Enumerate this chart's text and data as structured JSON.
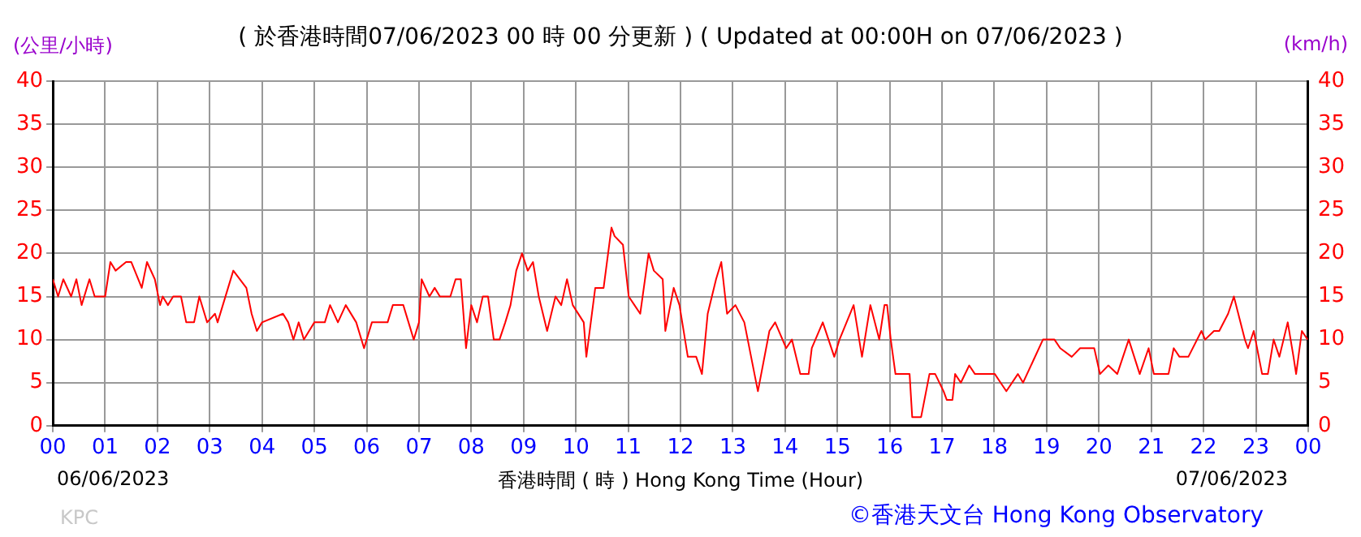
{
  "chart_data": {
    "type": "line",
    "title": "( 於香港時間07/06/2023 00 時 00 分更新 ) ( Updated at 00:00H on 07/06/2023 )",
    "xlabel": "香港時間 ( 時 )  Hong Kong Time (Hour)",
    "ylabel": "(公里/小時)",
    "y2label": "(km/h)",
    "annotations": [
      "06/06/2023",
      "07/06/2023",
      "KPC",
      "©香港天文台 Hong Kong Observatory"
    ],
    "xlim": [
      0,
      24
    ],
    "ylim": [
      0,
      40
    ],
    "y2lim": [
      0,
      40
    ],
    "xticks": [
      {
        "value": 0,
        "label": "00"
      },
      {
        "value": 1,
        "label": "01"
      },
      {
        "value": 2,
        "label": "02"
      },
      {
        "value": 3,
        "label": "03"
      },
      {
        "value": 4,
        "label": "04"
      },
      {
        "value": 5,
        "label": "05"
      },
      {
        "value": 6,
        "label": "06"
      },
      {
        "value": 7,
        "label": "07"
      },
      {
        "value": 8,
        "label": "08"
      },
      {
        "value": 9,
        "label": "09"
      },
      {
        "value": 10,
        "label": "10"
      },
      {
        "value": 11,
        "label": "11"
      },
      {
        "value": 12,
        "label": "12"
      },
      {
        "value": 13,
        "label": "13"
      },
      {
        "value": 14,
        "label": "14"
      },
      {
        "value": 15,
        "label": "15"
      },
      {
        "value": 16,
        "label": "16"
      },
      {
        "value": 17,
        "label": "17"
      },
      {
        "value": 18,
        "label": "18"
      },
      {
        "value": 19,
        "label": "19"
      },
      {
        "value": 20,
        "label": "20"
      },
      {
        "value": 21,
        "label": "21"
      },
      {
        "value": 22,
        "label": "22"
      },
      {
        "value": 23,
        "label": "23"
      },
      {
        "value": 24,
        "label": "00"
      }
    ],
    "yticks": [
      0,
      5,
      10,
      15,
      20,
      25,
      30,
      35,
      40
    ],
    "y2ticks": [
      0,
      5,
      10,
      15,
      20,
      25,
      30,
      35,
      40
    ],
    "grid": true,
    "legend": false,
    "marker": "none",
    "line_style": "solid",
    "series": [
      {
        "color": "#ff0000",
        "x": [
          0,
          0.1,
          0.2,
          0.35,
          0.45,
          0.55,
          0.65,
          0.7,
          0.8,
          1.0,
          1.05,
          1.1,
          1.2,
          1.4,
          1.5,
          1.7,
          1.8,
          1.95,
          2.05,
          2.1,
          2.2,
          2.3,
          2.45,
          2.55,
          2.7,
          2.8,
          2.95,
          3.1,
          3.15,
          3.35,
          3.45,
          3.7,
          3.8,
          3.9,
          4.0,
          4.4,
          4.5,
          4.6,
          4.7,
          4.8,
          5.0,
          5.2,
          5.3,
          5.45,
          5.6,
          5.8,
          5.95,
          6.1,
          6.4,
          6.5,
          6.7,
          6.8,
          6.9,
          7.0,
          7.05,
          7.2,
          7.3,
          7.4,
          7.6,
          7.7,
          7.8,
          7.9,
          8.0,
          8.11,
          8.22,
          8.32,
          8.43,
          8.54,
          8.65,
          8.75,
          8.86,
          8.97,
          9.08,
          9.18,
          9.29,
          9.45,
          9.61,
          9.72,
          9.83,
          9.94,
          10.15,
          10.2,
          10.37,
          10.53,
          10.68,
          10.74,
          10.9,
          11.01,
          11.12,
          11.23,
          11.39,
          11.49,
          11.66,
          11.71,
          11.87,
          11.98,
          12.14,
          12.3,
          12.41,
          12.52,
          12.68,
          12.78,
          12.89,
          13.05,
          13.22,
          13.48,
          13.7,
          13.81,
          14.02,
          14.13,
          14.29,
          14.45,
          14.51,
          14.72,
          14.94,
          15.04,
          15.31,
          15.47,
          15.63,
          15.8,
          15.9,
          15.95,
          16.02,
          16.11,
          16.38,
          16.43,
          16.6,
          16.76,
          16.87,
          17.03,
          17.09,
          17.2,
          17.25,
          17.36,
          17.52,
          17.63,
          18.01,
          18.12,
          18.23,
          18.45,
          18.55,
          18.93,
          19.15,
          19.26,
          19.48,
          19.64,
          19.91,
          20.02,
          20.18,
          20.35,
          20.57,
          20.78,
          20.95,
          21.05,
          21.33,
          21.43,
          21.54,
          21.71,
          21.96,
          22.03,
          22.2,
          22.3,
          22.47,
          22.58,
          22.79,
          22.85,
          22.96,
          23.12,
          23.23,
          23.34,
          23.45,
          23.61,
          23.72,
          23.77,
          23.88,
          23.99
        ],
        "values": [
          17,
          15,
          17,
          15,
          17,
          14,
          16,
          17,
          15,
          15,
          17,
          19,
          18,
          19,
          19,
          16,
          19,
          17,
          14,
          15,
          14,
          15,
          15,
          12,
          12,
          15,
          12,
          13,
          12,
          16,
          18,
          16,
          13,
          11,
          12,
          13,
          12,
          10,
          12,
          10,
          12,
          12,
          14,
          12,
          14,
          12,
          9,
          12,
          12,
          14,
          14,
          12,
          10,
          12,
          17,
          15,
          16,
          15,
          15,
          17,
          17,
          9,
          14,
          12,
          15,
          15,
          10,
          10,
          12,
          14,
          18,
          20,
          18,
          19,
          15,
          11,
          15,
          14,
          17,
          14,
          12,
          8,
          16,
          16,
          23,
          22,
          21,
          15,
          14,
          13,
          20,
          18,
          17,
          11,
          16,
          14,
          8,
          8,
          6,
          13,
          17,
          19,
          13,
          14,
          12,
          4,
          11,
          12,
          9,
          10,
          6,
          6,
          9,
          12,
          8,
          10,
          14,
          8,
          14,
          10,
          14,
          14,
          10,
          6,
          6,
          1,
          1,
          6,
          6,
          4,
          3,
          3,
          6,
          5,
          7,
          6,
          6,
          5,
          4,
          6,
          5,
          10,
          10,
          9,
          8,
          9,
          9,
          6,
          7,
          6,
          10,
          6,
          9,
          6,
          6,
          9,
          8,
          8,
          11,
          10,
          11,
          11,
          13,
          15,
          10,
          9,
          11,
          6,
          6,
          10,
          8,
          12,
          8,
          6,
          11,
          10
        ]
      }
    ]
  }
}
